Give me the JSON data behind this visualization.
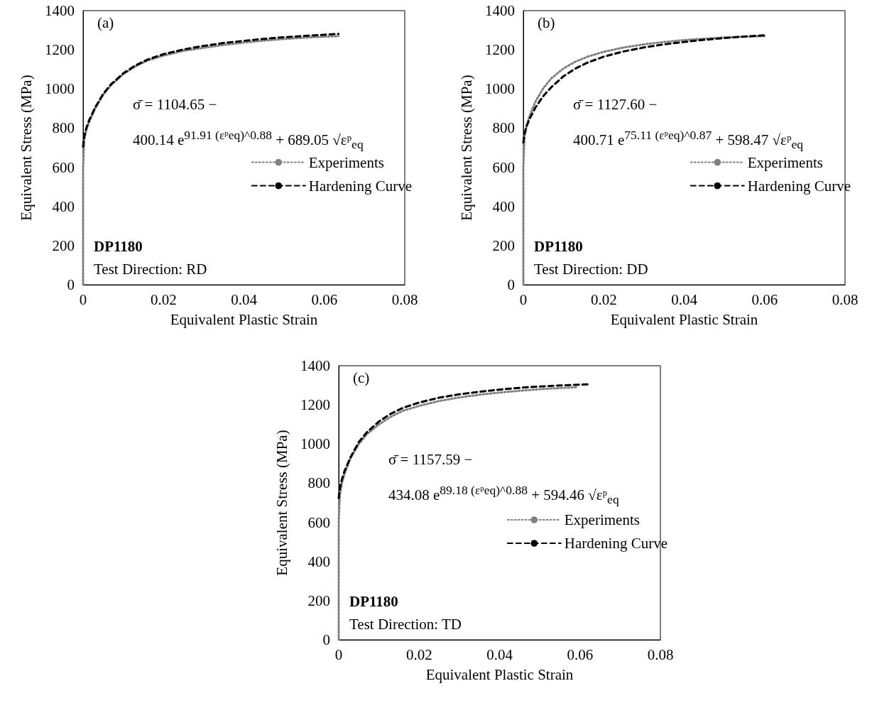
{
  "chart_data": [
    {
      "type": "line",
      "xlabel": "Equivalent Plastic Strain",
      "ylabel": "Equivalent Stress (MPa)",
      "xlim": [
        0,
        0.08
      ],
      "xticks": [
        0,
        0.02,
        0.04,
        0.06,
        0.08
      ],
      "ylim": [
        0,
        1400
      ],
      "yticks": [
        0,
        200,
        400,
        600,
        800,
        1000,
        1200,
        1400
      ],
      "grid": false,
      "legend": "right",
      "marker": "none",
      "annotations": [
        "(a)",
        "σ̄ = 1104.65 −",
        "400.14 e$^{91.91 (εᵖeq)^0.88}$ + 689.05 √εᵖ$_{eq}$",
        "DP1180",
        "Test Direction: RD"
      ],
      "series": [
        {
          "name": "Experiments",
          "color": "#808080",
          "line_style": "dotted",
          "x": [
            0,
            0,
            0,
            0.0003,
            0.0008,
            0.0015,
            0.003,
            0.005,
            0.007,
            0.01,
            0.013,
            0.016,
            0.02,
            0.025,
            0.03,
            0.035,
            0.04,
            0.045,
            0.05,
            0.055,
            0.06,
            0.0635
          ],
          "values": [
            0,
            300,
            600,
            740,
            790,
            830,
            900,
            970,
            1020,
            1075,
            1115,
            1145,
            1170,
            1195,
            1210,
            1225,
            1237,
            1247,
            1255,
            1262,
            1267,
            1270
          ]
        },
        {
          "name": "Hardening Curve",
          "color": "#000000",
          "line_style": "dashed",
          "x": [
            0,
            0.0003,
            0.0008,
            0.0015,
            0.003,
            0.005,
            0.007,
            0.01,
            0.013,
            0.016,
            0.02,
            0.025,
            0.03,
            0.035,
            0.04,
            0.045,
            0.05,
            0.055,
            0.06,
            0.0635
          ],
          "values": [
            705,
            760,
            800,
            840,
            905,
            975,
            1025,
            1080,
            1120,
            1150,
            1178,
            1202,
            1220,
            1235,
            1246,
            1256,
            1264,
            1271,
            1277,
            1281
          ]
        }
      ]
    },
    {
      "type": "line",
      "xlabel": "Equivalent Plastic Strain",
      "ylabel": "Equivalent Stress (MPa)",
      "xlim": [
        0,
        0.08
      ],
      "xticks": [
        0,
        0.02,
        0.04,
        0.06,
        0.08
      ],
      "ylim": [
        0,
        1400
      ],
      "yticks": [
        0,
        200,
        400,
        600,
        800,
        1000,
        1200,
        1400
      ],
      "grid": false,
      "legend": "right",
      "marker": "none",
      "annotations": [
        "(b)",
        "σ̄ = 1127.60 −",
        "400.71 e$^{75.11 (εᵖeq)^0.87}$ + 598.47 √εᵖ$_{eq}$",
        "DP1180",
        "Test Direction: DD"
      ],
      "series": [
        {
          "name": "Experiments",
          "color": "#808080",
          "line_style": "dotted",
          "x": [
            0,
            0,
            0,
            0.0003,
            0.0008,
            0.0015,
            0.003,
            0.005,
            0.007,
            0.01,
            0.013,
            0.016,
            0.02,
            0.025,
            0.03,
            0.035,
            0.04,
            0.045,
            0.05,
            0.055,
            0.06
          ],
          "values": [
            0,
            300,
            600,
            760,
            810,
            860,
            935,
            1005,
            1055,
            1105,
            1140,
            1165,
            1190,
            1212,
            1228,
            1240,
            1250,
            1257,
            1263,
            1267,
            1270
          ]
        },
        {
          "name": "Hardening Curve",
          "color": "#000000",
          "line_style": "dashed",
          "x": [
            0,
            0.0003,
            0.0008,
            0.0015,
            0.003,
            0.005,
            0.007,
            0.01,
            0.013,
            0.016,
            0.02,
            0.025,
            0.03,
            0.035,
            0.04,
            0.045,
            0.05,
            0.055,
            0.0605
          ],
          "values": [
            727,
            770,
            810,
            845,
            905,
            965,
            1010,
            1065,
            1105,
            1135,
            1165,
            1192,
            1212,
            1228,
            1240,
            1251,
            1260,
            1268,
            1275
          ]
        }
      ]
    },
    {
      "type": "line",
      "xlabel": "Equivalent Plastic Strain",
      "ylabel": "Equivalent Stress (MPa)",
      "xlim": [
        0,
        0.08
      ],
      "xticks": [
        0,
        0.02,
        0.04,
        0.06,
        0.08
      ],
      "ylim": [
        0,
        1400
      ],
      "yticks": [
        0,
        200,
        400,
        600,
        800,
        1000,
        1200,
        1400
      ],
      "grid": false,
      "legend": "right",
      "marker": "none",
      "annotations": [
        "(c)",
        "σ̄ = 1157.59 −",
        "434.08 e$^{89.18 (εᵖeq)^0.88}$ + 594.46 √εᵖ$_{eq}$",
        "DP1180",
        "Test Direction: TD"
      ],
      "series": [
        {
          "name": "Experiments",
          "color": "#808080",
          "line_style": "dotted",
          "x": [
            0,
            0,
            0,
            0.0003,
            0.0008,
            0.0015,
            0.003,
            0.005,
            0.007,
            0.01,
            0.013,
            0.016,
            0.02,
            0.025,
            0.03,
            0.035,
            0.04,
            0.045,
            0.05,
            0.055,
            0.059
          ],
          "values": [
            0,
            300,
            600,
            740,
            800,
            850,
            930,
            1000,
            1050,
            1100,
            1140,
            1170,
            1195,
            1220,
            1238,
            1252,
            1263,
            1272,
            1280,
            1286,
            1290
          ]
        },
        {
          "name": "Hardening Curve",
          "color": "#000000",
          "line_style": "dashed",
          "x": [
            0,
            0.0003,
            0.0008,
            0.0015,
            0.003,
            0.005,
            0.007,
            0.01,
            0.013,
            0.016,
            0.02,
            0.025,
            0.03,
            0.035,
            0.04,
            0.045,
            0.05,
            0.055,
            0.0625
          ],
          "values": [
            724,
            775,
            820,
            865,
            935,
            1010,
            1060,
            1115,
            1155,
            1185,
            1212,
            1237,
            1254,
            1267,
            1278,
            1287,
            1294,
            1299,
            1305
          ]
        }
      ]
    }
  ]
}
